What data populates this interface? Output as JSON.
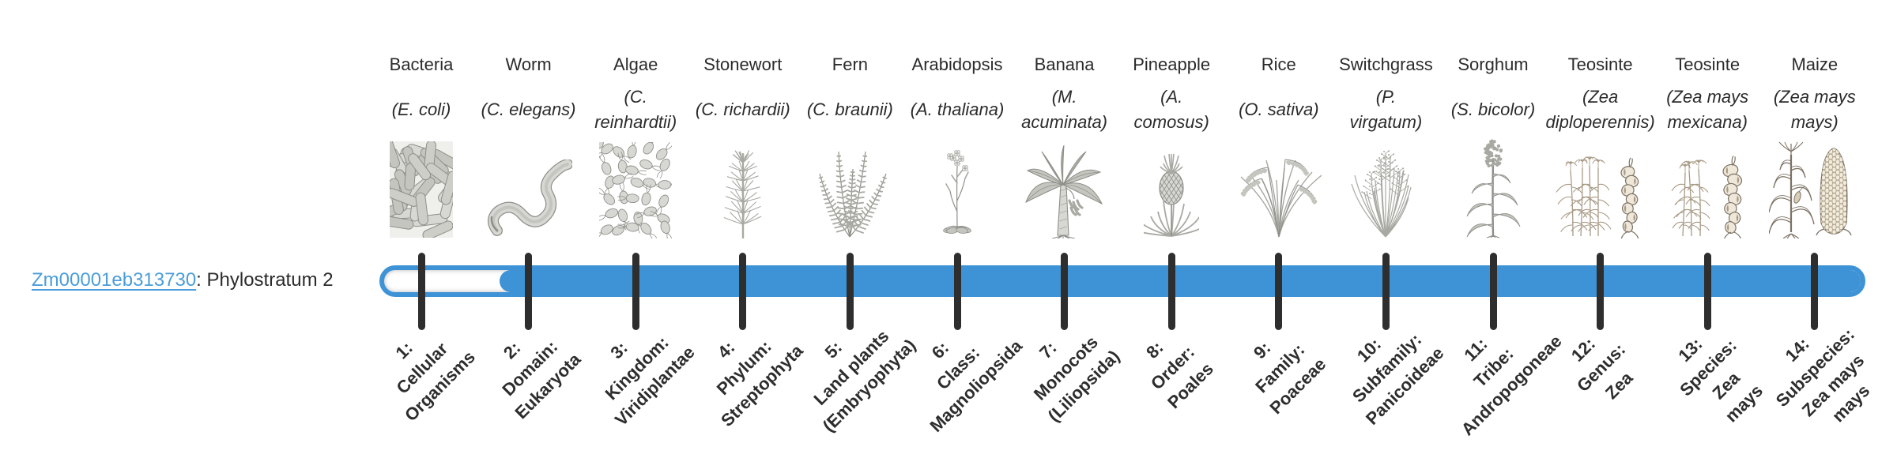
{
  "figure": {
    "background": "#ffffff"
  },
  "legend": {
    "gene_id": "Zm00001eb313730",
    "separator": ": ",
    "phylostratum": "Phylostratum 2"
  },
  "bar": {
    "phylostratum_index": 2,
    "total_strata": 14
  },
  "chart_data": {
    "type": "bar",
    "orientation": "horizontal",
    "series": [
      {
        "name": "Zm00001eb313730",
        "label": "Phylostratum 2",
        "phylostratum": 2,
        "bar_covers_strata": [
          2,
          14
        ]
      }
    ],
    "categories": [
      "1: Cellular Organisms",
      "2: Domain: Eukaryota",
      "3: Kingdom: Viridiplantae",
      "4: Phylum: Streptophyta",
      "5: Land plants (Embryophyta)",
      "6: Class: Magnoliopsida",
      "7: Monocots (Liliopsida)",
      "8: Order: Poales",
      "9: Family: Poaceae",
      "10: Subfamily: Panicoideae",
      "11: Tribe: Andropogoneae",
      "12: Genus: Zea",
      "13: Species: Zea mays",
      "14: Subspecies: Zea mays mays"
    ],
    "category_headers": [
      "Bacteria (E. coli)",
      "Worm (C. elegans)",
      "Algae (C. reinhardtii)",
      "Stonewort (C. richardii)",
      "Fern (C. braunii)",
      "Arabidopsis (A. thaliana)",
      "Banana (M. acuminata)",
      "Pineapple (A. comosus)",
      "Rice (O. sativa)",
      "Switchgrass (P. virgatum)",
      "Sorghum (S. bicolor)",
      "Teosinte (Zea diploperennis)",
      "Teosinte (Zea mays mexicana)",
      "Maize (Zea mays mays)"
    ],
    "xlim": [
      1,
      14
    ],
    "grid": false,
    "legend_position": "left",
    "tick_label_rotation_deg": -45
  },
  "colors": {
    "bar_blue": "#3d93d6",
    "link_blue": "#4a9dda",
    "tick_dark": "#2e2e2e",
    "text_dark": "#2b2b2b"
  },
  "taxa": [
    {
      "common": "Bacteria",
      "sci": "(E. coli)",
      "sci_text": "(E. coli)",
      "icon": "bacteria",
      "stratum": "1: Cellular Organisms",
      "stratum_text": "1:\nCellular\nOrganisms"
    },
    {
      "common": "Worm",
      "sci": "(C. elegans)",
      "sci_text": "(C. elegans)",
      "icon": "worm",
      "stratum": "2: Domain: Eukaryota",
      "stratum_text": "2:\nDomain:\nEukaryota"
    },
    {
      "common": "Algae",
      "sci": "(C. reinhardtii)",
      "sci_text": "(C.\nreinhardtii)",
      "icon": "algae",
      "stratum": "3: Kingdom: Viridiplantae",
      "stratum_text": "3:\nKingdom:\nViridiplantae"
    },
    {
      "common": "Stonewort",
      "sci": "(C. richardii)",
      "sci_text": "(C. richardii)",
      "icon": "stonewort",
      "stratum": "4: Phylum: Streptophyta",
      "stratum_text": "4:\nPhylum:\nStreptophyta"
    },
    {
      "common": "Fern",
      "sci": "(C. braunii)",
      "sci_text": "(C. braunii)",
      "icon": "fern",
      "stratum": "5: Land plants (Embryophyta)",
      "stratum_text": "5:\nLand plants\n(Embryophyta)"
    },
    {
      "common": "Arabidopsis",
      "sci": "(A. thaliana)",
      "sci_text": "(A. thaliana)",
      "icon": "arabidopsis",
      "stratum": "6: Class: Magnoliopsida",
      "stratum_text": "6:\nClass:\nMagnoliopsida"
    },
    {
      "common": "Banana",
      "sci": "(M. acuminata)",
      "sci_text": "(M.\nacuminata)",
      "icon": "banana",
      "stratum": "7: Monocots (Liliopsida)",
      "stratum_text": "7:\nMonocots\n(Liliopsida)"
    },
    {
      "common": "Pineapple",
      "sci": "(A. comosus)",
      "sci_text": "(A.\ncomosus)",
      "icon": "pineapple",
      "stratum": "8: Order: Poales",
      "stratum_text": "8:\nOrder:\nPoales"
    },
    {
      "common": "Rice",
      "sci": "(O. sativa)",
      "sci_text": "(O. sativa)",
      "icon": "rice",
      "stratum": "9: Family: Poaceae",
      "stratum_text": "9:\nFamily:\nPoaceae"
    },
    {
      "common": "Switchgrass",
      "sci": "(P. virgatum)",
      "sci_text": "(P.\nvirgatum)",
      "icon": "switchgrass",
      "stratum": "10: Subfamily: Panicoideae",
      "stratum_text": "10:\nSubfamily:\nPanicoideae"
    },
    {
      "common": "Sorghum",
      "sci": "(S. bicolor)",
      "sci_text": "(S. bicolor)",
      "icon": "sorghum",
      "stratum": "11: Tribe: Andropogoneae",
      "stratum_text": "11:\nTribe:\nAndropogoneae"
    },
    {
      "common": "Teosinte",
      "sci": "(Zea diploperennis)",
      "sci_text": "(Zea\ndiploperennis)",
      "icon": "teosinte-diplo",
      "stratum": "12: Genus: Zea",
      "stratum_text": "12:\nGenus:\nZea"
    },
    {
      "common": "Teosinte",
      "sci": "(Zea mays mexicana)",
      "sci_text": "(Zea mays\nmexicana)",
      "icon": "teosinte-mex",
      "stratum": "13: Species: Zea mays",
      "stratum_text": "13:\nSpecies:\nZea\nmays"
    },
    {
      "common": "Maize",
      "sci": "(Zea mays mays)",
      "sci_text": "(Zea mays\nmays)",
      "icon": "maize",
      "stratum": "14: Subspecies: Zea mays mays",
      "stratum_text": "14:\nSubspecies:\nZea mays\nmays"
    }
  ]
}
